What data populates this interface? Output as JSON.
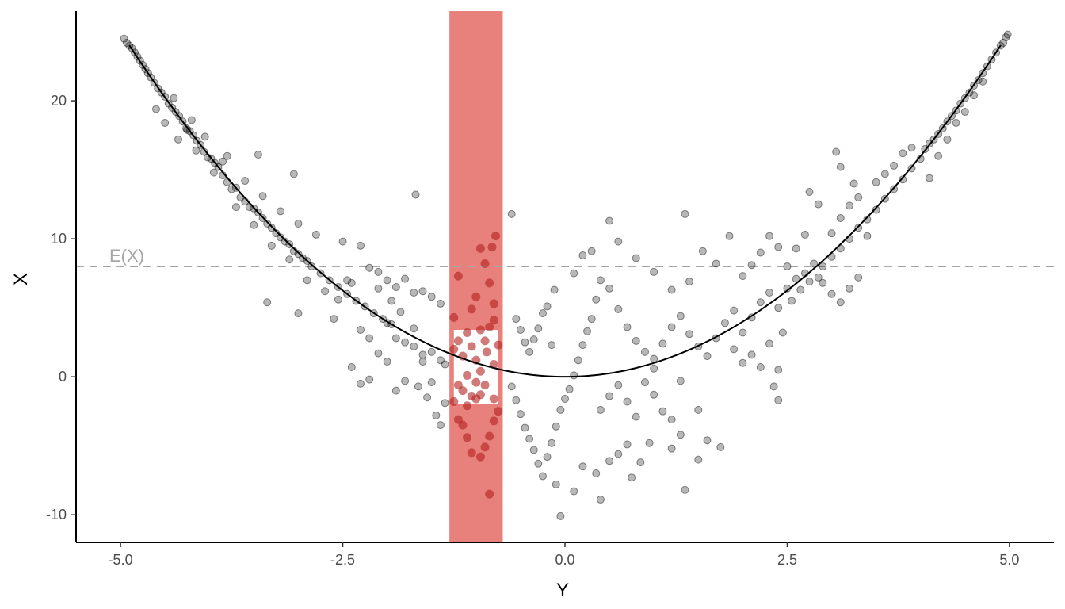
{
  "chart_data": {
    "type": "scatter",
    "xlabel": "Y",
    "ylabel": "X",
    "xlim": [
      -5.5,
      5.5
    ],
    "ylim": [
      -12,
      26.5
    ],
    "x_ticks": [
      -5.0,
      -2.5,
      0.0,
      2.5,
      5.0
    ],
    "x_tick_labels": [
      "-5.0",
      "-2.5",
      "0.0",
      "2.5",
      "5.0"
    ],
    "y_ticks": [
      -10,
      0,
      10,
      20
    ],
    "y_tick_labels": [
      "-10",
      "0",
      "10",
      "20"
    ],
    "grid": false,
    "reference_line": {
      "value": 8,
      "label": "E(X)",
      "style": "dashed",
      "color": "#a6a6a6"
    },
    "highlight_band": {
      "x_range": [
        -1.3,
        -0.7
      ],
      "color": "#e0574f",
      "opacity": 0.75
    },
    "white_box": {
      "x_range": [
        -1.25,
        -0.75
      ],
      "y_range": [
        -2,
        3.4
      ]
    },
    "curve": {
      "formula": "x^2",
      "x_range": [
        -4.9,
        4.9
      ],
      "color": "#000000"
    },
    "scatter_color": "#000000",
    "highlight_point_color": "#b22222",
    "points": [
      [
        -4.96,
        24.5
      ],
      [
        -4.93,
        24.2
      ],
      [
        -4.9,
        24.0
      ],
      [
        -4.87,
        23.8
      ],
      [
        -4.84,
        23.5
      ],
      [
        -4.81,
        23.2
      ],
      [
        -4.78,
        22.9
      ],
      [
        -4.75,
        22.6
      ],
      [
        -4.72,
        22.3
      ],
      [
        -4.69,
        22.0
      ],
      [
        -4.66,
        21.7
      ],
      [
        -4.62,
        21.3
      ],
      [
        -4.58,
        20.9
      ],
      [
        -4.54,
        20.6
      ],
      [
        -4.5,
        20.3
      ],
      [
        -4.46,
        19.8
      ],
      [
        -4.42,
        19.5
      ],
      [
        -4.38,
        19.2
      ],
      [
        -4.34,
        18.9
      ],
      [
        -4.3,
        18.5
      ],
      [
        -4.26,
        18.0
      ],
      [
        -4.22,
        17.8
      ],
      [
        -4.18,
        17.5
      ],
      [
        -4.14,
        17.1
      ],
      [
        -4.1,
        16.8
      ],
      [
        -4.06,
        16.3
      ],
      [
        -4.02,
        15.9
      ],
      [
        -3.98,
        15.8
      ],
      [
        -3.94,
        15.5
      ],
      [
        -3.9,
        15.2
      ],
      [
        -4.4,
        20.2
      ],
      [
        -4.2,
        18.6
      ],
      [
        -4.05,
        17.4
      ],
      [
        -3.85,
        15.6
      ],
      [
        -4.6,
        19.4
      ],
      [
        -4.35,
        17.2
      ],
      [
        -4.15,
        16.4
      ],
      [
        -3.95,
        14.8
      ],
      [
        -4.5,
        18.4
      ],
      [
        -4.25,
        17.9
      ],
      [
        -3.85,
        14.6
      ],
      [
        -3.8,
        14.1
      ],
      [
        -3.75,
        13.6
      ],
      [
        -3.7,
        13.7
      ],
      [
        -3.65,
        13.0
      ],
      [
        -3.6,
        12.7
      ],
      [
        -3.55,
        12.3
      ],
      [
        -3.5,
        12.2
      ],
      [
        -3.45,
        11.9
      ],
      [
        -3.4,
        11.5
      ],
      [
        -3.35,
        11.1
      ],
      [
        -3.3,
        10.8
      ],
      [
        -3.25,
        10.4
      ],
      [
        -3.2,
        10.1
      ],
      [
        -3.15,
        9.8
      ],
      [
        -3.1,
        9.6
      ],
      [
        -3.05,
        9.1
      ],
      [
        -3.0,
        8.9
      ],
      [
        -2.95,
        8.6
      ],
      [
        -2.9,
        8.4
      ],
      [
        -3.8,
        16.0
      ],
      [
        -3.6,
        14.2
      ],
      [
        -3.4,
        13.1
      ],
      [
        -3.2,
        12.0
      ],
      [
        -3.0,
        11.1
      ],
      [
        -2.8,
        10.3
      ],
      [
        -3.7,
        12.3
      ],
      [
        -3.5,
        11.0
      ],
      [
        -3.3,
        9.5
      ],
      [
        -3.1,
        8.5
      ],
      [
        -3.45,
        16.1
      ],
      [
        -3.05,
        14.7
      ],
      [
        -1.68,
        13.2
      ],
      [
        -3.35,
        5.4
      ],
      [
        -3.0,
        4.6
      ],
      [
        -2.6,
        4.2
      ],
      [
        -2.9,
        7.0
      ],
      [
        -2.7,
        6.2
      ],
      [
        -2.55,
        5.6
      ],
      [
        -2.4,
        6.8
      ],
      [
        -2.85,
        8.0
      ],
      [
        -2.75,
        7.5
      ],
      [
        -2.65,
        7.0
      ],
      [
        -2.55,
        6.5
      ],
      [
        -2.45,
        6.0
      ],
      [
        -2.35,
        5.5
      ],
      [
        -2.25,
        5.1
      ],
      [
        -2.15,
        4.6
      ],
      [
        -2.05,
        4.2
      ],
      [
        -1.95,
        3.8
      ],
      [
        -2.5,
        9.8
      ],
      [
        -2.3,
        9.5
      ],
      [
        -2.1,
        7.6
      ],
      [
        -2.0,
        7.0
      ],
      [
        -1.9,
        6.5
      ],
      [
        -1.8,
        7.1
      ],
      [
        -1.7,
        6.1
      ],
      [
        -1.6,
        6.2
      ],
      [
        -1.5,
        5.8
      ],
      [
        -1.4,
        5.3
      ],
      [
        -2.2,
        7.9
      ],
      [
        -2.1,
        6.4
      ],
      [
        -2.0,
        3.9
      ],
      [
        -1.9,
        2.8
      ],
      [
        -1.8,
        2.5
      ],
      [
        -1.7,
        2.2
      ],
      [
        -1.6,
        1.6
      ],
      [
        -1.5,
        1.8
      ],
      [
        -1.4,
        1.2
      ],
      [
        -1.35,
        0.9
      ],
      [
        -2.3,
        3.4
      ],
      [
        -2.2,
        2.8
      ],
      [
        -2.1,
        1.7
      ],
      [
        -2.0,
        1.1
      ],
      [
        -1.9,
        -1.0
      ],
      [
        -2.3,
        -0.5
      ],
      [
        -2.2,
        -0.2
      ],
      [
        -2.4,
        0.7
      ],
      [
        -1.8,
        -0.3
      ],
      [
        -1.65,
        -0.7
      ],
      [
        -1.55,
        -1.5
      ],
      [
        -1.45,
        -2.8
      ],
      [
        -1.4,
        -3.5
      ],
      [
        -1.35,
        -1.9
      ],
      [
        -1.5,
        -0.4
      ],
      [
        -1.6,
        1.1
      ],
      [
        -1.7,
        3.5
      ],
      [
        -1.85,
        4.7
      ],
      [
        -1.95,
        5.5
      ],
      [
        -2.45,
        7.0
      ],
      [
        -0.6,
        11.8
      ],
      [
        -0.55,
        4.2
      ],
      [
        -0.5,
        3.4
      ],
      [
        -0.45,
        2.5
      ],
      [
        -0.4,
        1.8
      ],
      [
        -0.35,
        2.7
      ],
      [
        -0.3,
        3.5
      ],
      [
        -0.25,
        4.6
      ],
      [
        -0.2,
        5.1
      ],
      [
        -0.15,
        2.3
      ],
      [
        -0.6,
        -0.7
      ],
      [
        -0.55,
        -1.7
      ],
      [
        -0.5,
        -2.7
      ],
      [
        -0.45,
        -3.7
      ],
      [
        -0.4,
        -4.5
      ],
      [
        -0.35,
        -5.3
      ],
      [
        -0.3,
        -6.3
      ],
      [
        -0.25,
        -7.2
      ],
      [
        -0.2,
        -5.8
      ],
      [
        -0.15,
        -4.8
      ],
      [
        -0.1,
        -3.6
      ],
      [
        -0.05,
        -2.4
      ],
      [
        0.0,
        -1.6
      ],
      [
        0.05,
        -0.9
      ],
      [
        0.1,
        0.1
      ],
      [
        0.15,
        1.2
      ],
      [
        0.2,
        2.3
      ],
      [
        0.25,
        3.3
      ],
      [
        0.3,
        4.2
      ],
      [
        0.35,
        5.6
      ],
      [
        -0.12,
        6.3
      ],
      [
        0.1,
        7.5
      ],
      [
        0.2,
        8.8
      ],
      [
        0.3,
        9.1
      ],
      [
        0.4,
        7.0
      ],
      [
        0.5,
        6.4
      ],
      [
        0.6,
        4.9
      ],
      [
        0.7,
        3.6
      ],
      [
        0.8,
        2.6
      ],
      [
        0.9,
        1.8
      ],
      [
        -0.1,
        -7.8
      ],
      [
        -0.05,
        -10.1
      ],
      [
        0.1,
        -8.3
      ],
      [
        0.2,
        -6.5
      ],
      [
        0.35,
        -7.0
      ],
      [
        0.4,
        -8.9
      ],
      [
        0.5,
        -6.1
      ],
      [
        0.6,
        -5.6
      ],
      [
        0.75,
        -7.3
      ],
      [
        0.85,
        -6.2
      ],
      [
        0.4,
        -2.4
      ],
      [
        0.5,
        -1.4
      ],
      [
        0.6,
        -0.6
      ],
      [
        0.7,
        -1.8
      ],
      [
        0.8,
        -2.9
      ],
      [
        0.9,
        -0.4
      ],
      [
        1.0,
        -1.3
      ],
      [
        1.1,
        -2.5
      ],
      [
        1.2,
        -3.1
      ],
      [
        1.3,
        -4.2
      ],
      [
        1.0,
        1.3
      ],
      [
        1.1,
        2.4
      ],
      [
        1.2,
        3.6
      ],
      [
        1.3,
        4.4
      ],
      [
        1.4,
        3.1
      ],
      [
        1.5,
        2.2
      ],
      [
        1.6,
        1.5
      ],
      [
        1.7,
        2.8
      ],
      [
        1.8,
        3.9
      ],
      [
        1.9,
        4.8
      ],
      [
        0.5,
        11.3
      ],
      [
        0.6,
        9.8
      ],
      [
        0.8,
        8.6
      ],
      [
        1.0,
        7.6
      ],
      [
        1.2,
        6.3
      ],
      [
        1.35,
        11.8
      ],
      [
        1.4,
        6.9
      ],
      [
        1.55,
        9.1
      ],
      [
        1.7,
        8.2
      ],
      [
        1.85,
        10.2
      ],
      [
        1.0,
        0.6
      ],
      [
        1.3,
        -0.3
      ],
      [
        1.5,
        -2.4
      ],
      [
        1.6,
        -4.6
      ],
      [
        1.75,
        -5.1
      ],
      [
        1.35,
        -8.2
      ],
      [
        1.5,
        -6.0
      ],
      [
        1.2,
        -5.2
      ],
      [
        0.95,
        -4.8
      ],
      [
        0.7,
        -4.9
      ],
      [
        1.9,
        2.0
      ],
      [
        2.0,
        3.2
      ],
      [
        2.1,
        4.3
      ],
      [
        2.2,
        5.4
      ],
      [
        2.3,
        6.1
      ],
      [
        2.4,
        5.0
      ],
      [
        2.5,
        6.4
      ],
      [
        2.6,
        7.1
      ],
      [
        2.7,
        7.5
      ],
      [
        2.8,
        8.2
      ],
      [
        2.0,
        7.3
      ],
      [
        2.1,
        8.1
      ],
      [
        2.2,
        9.0
      ],
      [
        2.3,
        10.2
      ],
      [
        2.4,
        9.4
      ],
      [
        2.5,
        8.0
      ],
      [
        2.6,
        9.3
      ],
      [
        2.7,
        10.3
      ],
      [
        2.2,
        0.7
      ],
      [
        2.4,
        0.5
      ],
      [
        2.0,
        1.0
      ],
      [
        2.1,
        1.6
      ],
      [
        2.3,
        2.4
      ],
      [
        2.45,
        3.2
      ],
      [
        2.35,
        -0.7
      ],
      [
        2.4,
        -1.7
      ],
      [
        2.55,
        5.5
      ],
      [
        2.65,
        6.3
      ],
      [
        2.75,
        6.9
      ],
      [
        2.85,
        7.2
      ],
      [
        2.9,
        8.0
      ],
      [
        3.0,
        8.7
      ],
      [
        3.1,
        9.3
      ],
      [
        3.2,
        10.0
      ],
      [
        3.3,
        10.8
      ],
      [
        3.4,
        11.4
      ],
      [
        3.5,
        12.1
      ],
      [
        3.6,
        12.9
      ],
      [
        3.7,
        13.6
      ],
      [
        3.8,
        14.3
      ],
      [
        3.0,
        10.4
      ],
      [
        3.1,
        11.5
      ],
      [
        3.2,
        12.4
      ],
      [
        3.3,
        13.0
      ],
      [
        3.4,
        10.2
      ],
      [
        3.5,
        14.1
      ],
      [
        3.6,
        14.7
      ],
      [
        3.7,
        15.3
      ],
      [
        3.8,
        16.2
      ],
      [
        3.9,
        16.6
      ],
      [
        2.9,
        6.8
      ],
      [
        3.0,
        6.0
      ],
      [
        3.1,
        5.4
      ],
      [
        3.2,
        6.4
      ],
      [
        3.3,
        7.2
      ],
      [
        3.1,
        15.2
      ],
      [
        3.25,
        14.0
      ],
      [
        3.05,
        16.3
      ],
      [
        2.85,
        12.5
      ],
      [
        2.75,
        13.4
      ],
      [
        3.9,
        15.1
      ],
      [
        4.0,
        15.8
      ],
      [
        4.05,
        16.5
      ],
      [
        4.1,
        16.9
      ],
      [
        4.15,
        17.2
      ],
      [
        4.2,
        17.6
      ],
      [
        4.25,
        18.0
      ],
      [
        4.3,
        18.5
      ],
      [
        4.35,
        18.9
      ],
      [
        4.4,
        19.3
      ],
      [
        4.45,
        19.8
      ],
      [
        4.5,
        20.2
      ],
      [
        4.55,
        20.6
      ],
      [
        4.6,
        21.1
      ],
      [
        4.65,
        21.5
      ],
      [
        4.7,
        22.0
      ],
      [
        4.75,
        22.5
      ],
      [
        4.8,
        23.0
      ],
      [
        4.85,
        23.5
      ],
      [
        4.9,
        24.0
      ],
      [
        4.93,
        24.2
      ],
      [
        4.96,
        24.6
      ],
      [
        4.98,
        24.8
      ],
      [
        4.1,
        14.4
      ],
      [
        4.2,
        16.0
      ],
      [
        4.3,
        17.2
      ],
      [
        4.4,
        18.4
      ],
      [
        4.5,
        19.2
      ],
      [
        4.6,
        20.4
      ],
      [
        4.7,
        21.4
      ]
    ],
    "highlight_points": [
      [
        -1.2,
        7.3
      ],
      [
        -1.25,
        4.3
      ],
      [
        -1.2,
        2.6
      ],
      [
        -1.25,
        2.0
      ],
      [
        -1.15,
        1.5
      ],
      [
        -1.1,
        3.2
      ],
      [
        -1.05,
        2.2
      ],
      [
        -1.0,
        1.2
      ],
      [
        -0.95,
        0.4
      ],
      [
        -0.9,
        2.6
      ],
      [
        -0.85,
        3.6
      ],
      [
        -0.8,
        4.1
      ],
      [
        -0.75,
        2.3
      ],
      [
        -0.8,
        0.9
      ],
      [
        -0.9,
        -0.6
      ],
      [
        -0.95,
        -1.3
      ],
      [
        -1.0,
        -1.6
      ],
      [
        -1.05,
        -1.4
      ],
      [
        -1.1,
        -2.1
      ],
      [
        -1.15,
        -1.0
      ],
      [
        -1.2,
        -0.6
      ],
      [
        -1.25,
        -1.8
      ],
      [
        -1.2,
        -3.1
      ],
      [
        -1.15,
        -3.5
      ],
      [
        -1.1,
        -4.4
      ],
      [
        -1.05,
        -5.5
      ],
      [
        -0.95,
        -5.8
      ],
      [
        -0.9,
        -5.1
      ],
      [
        -0.85,
        -4.3
      ],
      [
        -0.8,
        -3.2
      ],
      [
        -0.75,
        -2.5
      ],
      [
        -0.8,
        -1.6
      ],
      [
        -0.85,
        -8.5
      ],
      [
        -0.78,
        10.2
      ],
      [
        -0.82,
        9.4
      ],
      [
        -0.9,
        8.2
      ],
      [
        -0.95,
        9.3
      ],
      [
        -0.85,
        6.8
      ],
      [
        -0.8,
        5.3
      ],
      [
        -1.0,
        5.8
      ],
      [
        -1.05,
        4.9
      ],
      [
        -0.95,
        3.4
      ],
      [
        -1.1,
        0.1
      ],
      [
        -1.0,
        -0.4
      ],
      [
        -0.88,
        1.8
      ]
    ]
  }
}
